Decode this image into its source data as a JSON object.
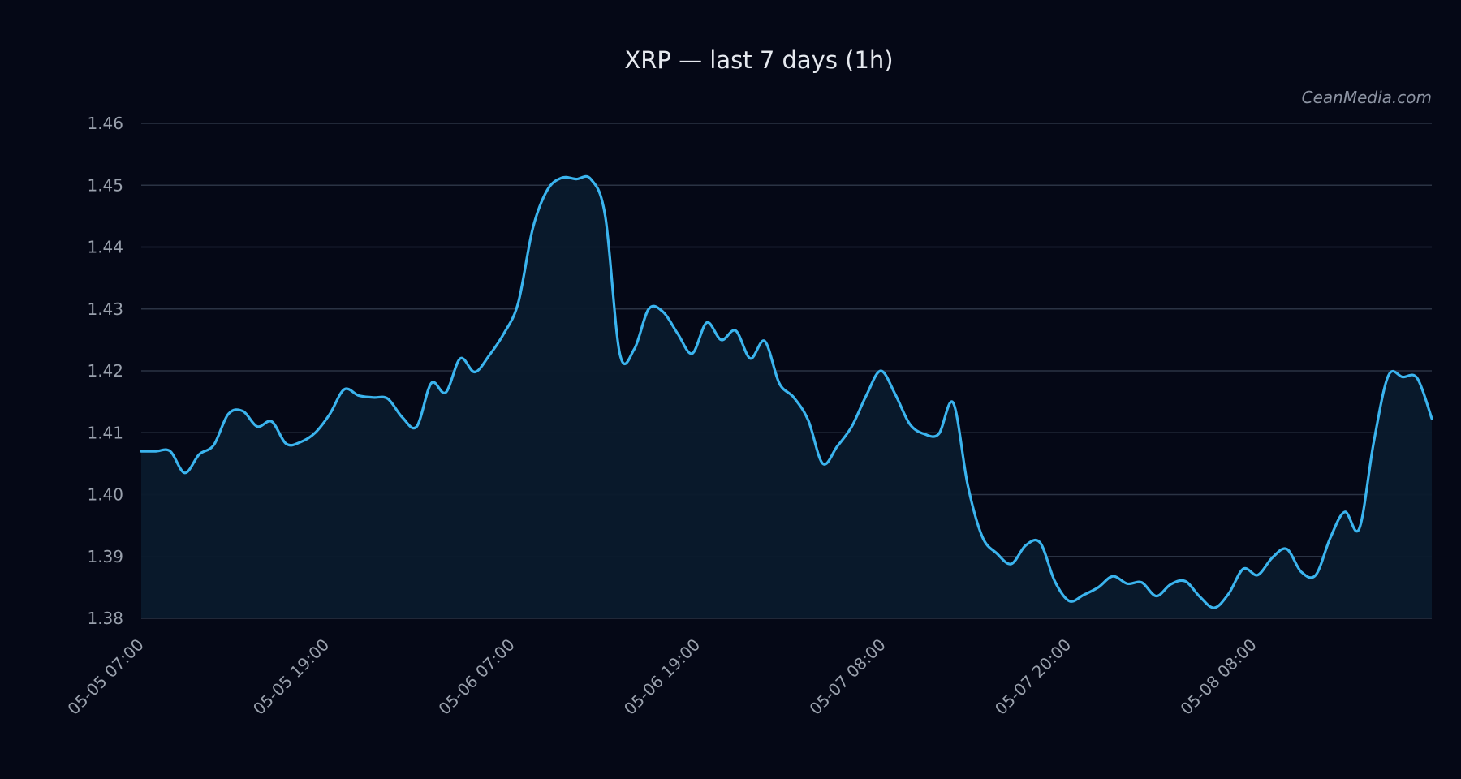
{
  "colors": {
    "background": "#050816",
    "line": "#3bb4ee",
    "area": "#0a1a2c",
    "grid": "#2b3344",
    "text": "#9aa1ad",
    "title": "#e6e9ef"
  },
  "watermark": "CeanMedia.com",
  "chart_data": {
    "type": "area",
    "title": "XRP — last 7 days (1h)",
    "xlabel": "",
    "ylabel": "",
    "ylim": [
      1.38,
      1.46
    ],
    "yticks": [
      "1.38",
      "1.39",
      "1.40",
      "1.41",
      "1.42",
      "1.43",
      "1.44",
      "1.45",
      "1.46"
    ],
    "xticks": [
      "05-05 07:00",
      "05-05 19:00",
      "05-06 07:00",
      "05-06 19:00",
      "05-07 08:00",
      "05-07 20:00",
      "05-08 08:00"
    ],
    "grid": true,
    "legend": "none",
    "series": [
      {
        "values": [
          1.407,
          1.407,
          1.407,
          1.4035,
          1.4065,
          1.408,
          1.413,
          1.4135,
          1.411,
          1.4118,
          1.4082,
          1.4085,
          1.41,
          1.413,
          1.417,
          1.416,
          1.4157,
          1.4155,
          1.4125,
          1.411,
          1.418,
          1.4165,
          1.422,
          1.4198,
          1.4225,
          1.426,
          1.431,
          1.443,
          1.4492,
          1.4512,
          1.451,
          1.451,
          1.445,
          1.4228,
          1.4235,
          1.43,
          1.4295,
          1.426,
          1.4228,
          1.4278,
          1.425,
          1.4265,
          1.422,
          1.4248,
          1.418,
          1.4157,
          1.412,
          1.405,
          1.4078,
          1.411,
          1.416,
          1.42,
          1.4162,
          1.4114,
          1.4098,
          1.4098,
          1.4148,
          1.4015,
          1.3932,
          1.3905,
          1.3888,
          1.3918,
          1.3922,
          1.386,
          1.3828,
          1.3838,
          1.385,
          1.3868,
          1.3856,
          1.3858,
          1.3836,
          1.3855,
          1.386,
          1.3835,
          1.3817,
          1.384,
          1.388,
          1.387,
          1.3898,
          1.3912,
          1.3875,
          1.387,
          1.393,
          1.3972,
          1.3945,
          1.4085,
          1.4192,
          1.419,
          1.4188,
          1.4123
        ]
      }
    ]
  }
}
